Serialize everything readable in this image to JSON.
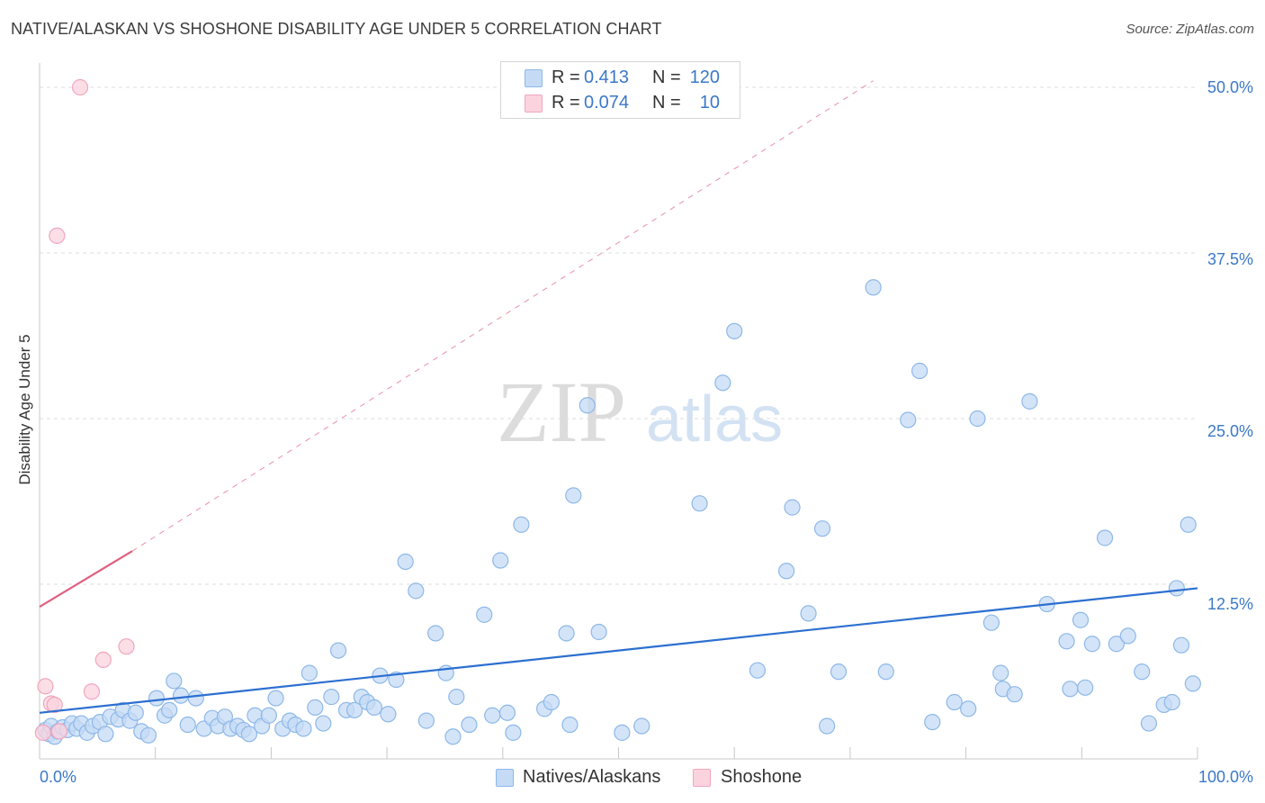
{
  "title": "NATIVE/ALASKAN VS SHOSHONE DISABILITY AGE UNDER 5 CORRELATION CHART",
  "source": "Source: ZipAtlas.com",
  "watermark": {
    "zip": "ZIP",
    "atlas": "atlas"
  },
  "legend": {
    "r_label": "R =",
    "n_label": "N =",
    "series": [
      {
        "name": "Natives/Alaskans",
        "r": "0.413",
        "n": "120",
        "color": "#8db8e8",
        "fill": "#c5dbf5",
        "line": "#2c6fd0"
      },
      {
        "name": "Shoshone",
        "r": "0.074",
        "n": "10",
        "color": "#f0a6bd",
        "fill": "#fbd3df",
        "line": "#e0607f"
      }
    ]
  },
  "chart_data": {
    "type": "scatter",
    "title": "NATIVE/ALASKAN VS SHOSHONE DISABILITY AGE UNDER 5 CORRELATION CHART",
    "xlabel": "",
    "ylabel": "Disability Age Under 5",
    "xlim": [
      0,
      100
    ],
    "ylim": [
      0,
      52
    ],
    "x_tick_labels": [
      "0.0%",
      "100.0%"
    ],
    "y_ticks": [
      12.5,
      25.0,
      37.5,
      50.0
    ],
    "y_tick_labels": [
      "12.5%",
      "25.0%",
      "37.5%",
      "50.0%"
    ],
    "grid": true,
    "series": [
      {
        "name": "Natives/Alaskans",
        "trend": {
          "x": [
            0,
            100
          ],
          "y": [
            2.8,
            12.2
          ],
          "style": "solid"
        },
        "points": [
          [
            0.5,
            1.5
          ],
          [
            0.8,
            1.2
          ],
          [
            1.0,
            1.8
          ],
          [
            1.3,
            1.0
          ],
          [
            1.6,
            1.4
          ],
          [
            2.0,
            1.7
          ],
          [
            2.4,
            1.5
          ],
          [
            2.8,
            2.0
          ],
          [
            3.2,
            1.6
          ],
          [
            3.6,
            2.0
          ],
          [
            4.1,
            1.3
          ],
          [
            4.6,
            1.8
          ],
          [
            5.2,
            2.1
          ],
          [
            5.7,
            1.2
          ],
          [
            6.1,
            2.5
          ],
          [
            6.8,
            2.3
          ],
          [
            7.2,
            3.0
          ],
          [
            7.8,
            2.2
          ],
          [
            8.3,
            2.8
          ],
          [
            8.8,
            1.4
          ],
          [
            9.4,
            1.1
          ],
          [
            10.1,
            3.9
          ],
          [
            10.8,
            2.6
          ],
          [
            11.2,
            3.0
          ],
          [
            11.6,
            5.2
          ],
          [
            12.2,
            4.1
          ],
          [
            12.8,
            1.9
          ],
          [
            13.5,
            3.9
          ],
          [
            14.2,
            1.6
          ],
          [
            14.9,
            2.4
          ],
          [
            15.4,
            1.8
          ],
          [
            16.0,
            2.5
          ],
          [
            16.5,
            1.6
          ],
          [
            17.1,
            1.8
          ],
          [
            17.6,
            1.5
          ],
          [
            18.1,
            1.2
          ],
          [
            18.6,
            2.6
          ],
          [
            19.2,
            1.8
          ],
          [
            19.8,
            2.6
          ],
          [
            20.4,
            3.9
          ],
          [
            21.0,
            1.6
          ],
          [
            21.6,
            2.2
          ],
          [
            22.1,
            1.9
          ],
          [
            22.8,
            1.6
          ],
          [
            23.3,
            5.8
          ],
          [
            23.8,
            3.2
          ],
          [
            24.5,
            2.0
          ],
          [
            25.2,
            4.0
          ],
          [
            25.8,
            7.5
          ],
          [
            26.5,
            3.0
          ],
          [
            27.2,
            3.0
          ],
          [
            27.8,
            4.0
          ],
          [
            28.3,
            3.6
          ],
          [
            28.9,
            3.2
          ],
          [
            29.4,
            5.6
          ],
          [
            30.1,
            2.7
          ],
          [
            30.8,
            5.3
          ],
          [
            31.6,
            14.2
          ],
          [
            32.5,
            12.0
          ],
          [
            33.4,
            2.2
          ],
          [
            34.2,
            8.8
          ],
          [
            35.1,
            5.8
          ],
          [
            35.7,
            1.0
          ],
          [
            36.0,
            4.0
          ],
          [
            37.1,
            1.9
          ],
          [
            38.4,
            10.2
          ],
          [
            39.1,
            2.6
          ],
          [
            39.8,
            14.3
          ],
          [
            40.4,
            2.8
          ],
          [
            40.9,
            1.3
          ],
          [
            41.6,
            17.0
          ],
          [
            43.6,
            3.1
          ],
          [
            44.2,
            3.6
          ],
          [
            45.5,
            8.8
          ],
          [
            45.8,
            1.9
          ],
          [
            46.1,
            19.2
          ],
          [
            47.3,
            26.0
          ],
          [
            48.3,
            8.9
          ],
          [
            50.3,
            1.3
          ],
          [
            52.0,
            1.8
          ],
          [
            57.0,
            18.6
          ],
          [
            59.0,
            27.7
          ],
          [
            60.0,
            31.6
          ],
          [
            62.0,
            6.0
          ],
          [
            64.5,
            13.5
          ],
          [
            65.0,
            18.3
          ],
          [
            66.4,
            10.3
          ],
          [
            67.6,
            16.7
          ],
          [
            68.0,
            1.8
          ],
          [
            69.0,
            5.9
          ],
          [
            72.0,
            34.9
          ],
          [
            73.1,
            5.9
          ],
          [
            75.0,
            24.9
          ],
          [
            76.0,
            28.6
          ],
          [
            77.1,
            2.1
          ],
          [
            79.0,
            3.6
          ],
          [
            80.2,
            3.1
          ],
          [
            81.0,
            25.0
          ],
          [
            82.2,
            9.6
          ],
          [
            83.0,
            5.8
          ],
          [
            83.2,
            4.6
          ],
          [
            84.2,
            4.2
          ],
          [
            85.5,
            26.3
          ],
          [
            87.0,
            11.0
          ],
          [
            88.7,
            8.2
          ],
          [
            89.0,
            4.6
          ],
          [
            89.9,
            9.8
          ],
          [
            90.3,
            4.7
          ],
          [
            90.9,
            8.0
          ],
          [
            92.0,
            16.0
          ],
          [
            93.0,
            8.0
          ],
          [
            94.0,
            8.6
          ],
          [
            95.2,
            5.9
          ],
          [
            95.8,
            2.0
          ],
          [
            97.1,
            3.4
          ],
          [
            97.8,
            3.6
          ],
          [
            98.2,
            12.2
          ],
          [
            98.6,
            7.9
          ],
          [
            99.2,
            17.0
          ],
          [
            99.6,
            5.0
          ]
        ]
      },
      {
        "name": "Shoshone",
        "trend": {
          "x": [
            0,
            8
          ],
          "y": [
            10.8,
            15.0
          ],
          "style": "solid",
          "extended": {
            "x": [
              8,
              72
            ],
            "y": [
              15.0,
              50.5
            ],
            "style": "dashed"
          }
        },
        "points": [
          [
            3.5,
            50.0
          ],
          [
            1.5,
            38.8
          ],
          [
            7.5,
            7.8
          ],
          [
            5.5,
            6.8
          ],
          [
            0.5,
            4.8
          ],
          [
            4.5,
            4.4
          ],
          [
            1.0,
            3.5
          ],
          [
            1.3,
            3.4
          ],
          [
            1.7,
            1.4
          ],
          [
            0.3,
            1.3
          ]
        ]
      }
    ]
  }
}
